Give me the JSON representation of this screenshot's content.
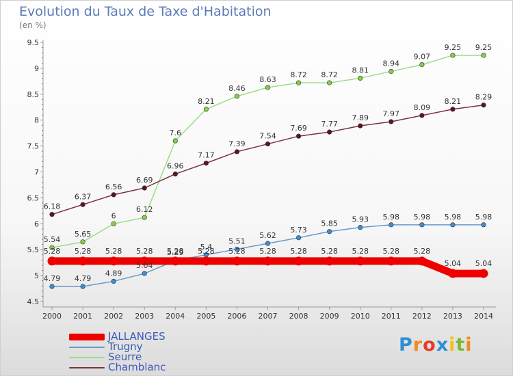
{
  "header": {
    "title": "Evolution du Taux de Taxe d'Habitation",
    "subtitle": "(en %)"
  },
  "logo": {
    "letters": [
      {
        "char": "P",
        "color": "#2f8fd6"
      },
      {
        "char": "r",
        "color": "#f08a1c"
      },
      {
        "char": "o",
        "color": "#e63a2b"
      },
      {
        "char": "x",
        "color": "#2f8fd6"
      },
      {
        "char": "i",
        "color": "#f2c21b"
      },
      {
        "char": "t",
        "color": "#7cb82f"
      },
      {
        "char": "i",
        "color": "#f08a1c"
      }
    ]
  },
  "chart_data": {
    "type": "line",
    "title": "Evolution du Taux de Taxe d'Habitation",
    "subtitle": "(en %)",
    "x": [
      2000,
      2001,
      2002,
      2003,
      2004,
      2005,
      2006,
      2007,
      2008,
      2009,
      2010,
      2011,
      2012,
      2013,
      2014
    ],
    "ylim": [
      4.5,
      9.5
    ],
    "yticks": [
      "4.5",
      "5",
      "5.5",
      "6",
      "6.5",
      "7",
      "7.5",
      "8",
      "8.5",
      "9",
      "9.5"
    ],
    "grid": false,
    "legend_position": "bottom-left",
    "series": [
      {
        "name": "JALLANGES",
        "color": "#ee0000",
        "thick": true,
        "values": [
          5.28,
          5.28,
          5.28,
          5.28,
          5.28,
          5.28,
          5.28,
          5.28,
          5.28,
          5.28,
          5.28,
          5.28,
          5.28,
          5.04,
          5.04
        ],
        "labels": [
          "5.28",
          "5.28",
          "5.28",
          "5.28",
          "5.28",
          "5.28",
          "5.28",
          "5.28",
          "5.28",
          "5.28",
          "5.28",
          "5.28",
          "5.28",
          "5.04",
          "5.04"
        ]
      },
      {
        "name": "Trugny",
        "color": "#6699cc",
        "marker": "#3b8fd6",
        "thick": false,
        "values": [
          4.79,
          4.79,
          4.89,
          5.04,
          5.29,
          5.4,
          5.51,
          5.62,
          5.73,
          5.85,
          5.93,
          5.98,
          5.98,
          5.98,
          5.98
        ],
        "labels": [
          "4.79",
          "4.79",
          "4.89",
          "5.04",
          "5.29",
          "5.4",
          "5.51",
          "5.62",
          "5.73",
          "5.85",
          "5.93",
          "5.98",
          "5.98",
          "5.98",
          "5.98"
        ]
      },
      {
        "name": "Seurre",
        "color": "#99dd88",
        "marker": "#88cc44",
        "thick": false,
        "values": [
          5.54,
          5.65,
          6,
          6.12,
          7.6,
          8.21,
          8.46,
          8.63,
          8.72,
          8.72,
          8.81,
          8.94,
          9.07,
          9.25,
          9.25
        ],
        "labels": [
          "5.54",
          "5.65",
          "6",
          "6.12",
          "7.6",
          "8.21",
          "8.46",
          "8.63",
          "8.72",
          "8.72",
          "8.81",
          "8.94",
          "9.07",
          "9.25",
          "9.25"
        ]
      },
      {
        "name": "Chamblanc",
        "color": "#7a3340",
        "marker": "#5c1520",
        "thick": false,
        "values": [
          6.18,
          6.37,
          6.56,
          6.69,
          6.96,
          7.17,
          7.39,
          7.54,
          7.69,
          7.77,
          7.89,
          7.97,
          8.09,
          8.21,
          8.29
        ],
        "labels": [
          "6.18",
          "6.37",
          "6.56",
          "6.69",
          "6.96",
          "7.17",
          "7.39",
          "7.54",
          "7.69",
          "7.77",
          "7.89",
          "7.97",
          "8.09",
          "8.21",
          "8.29"
        ]
      }
    ]
  }
}
